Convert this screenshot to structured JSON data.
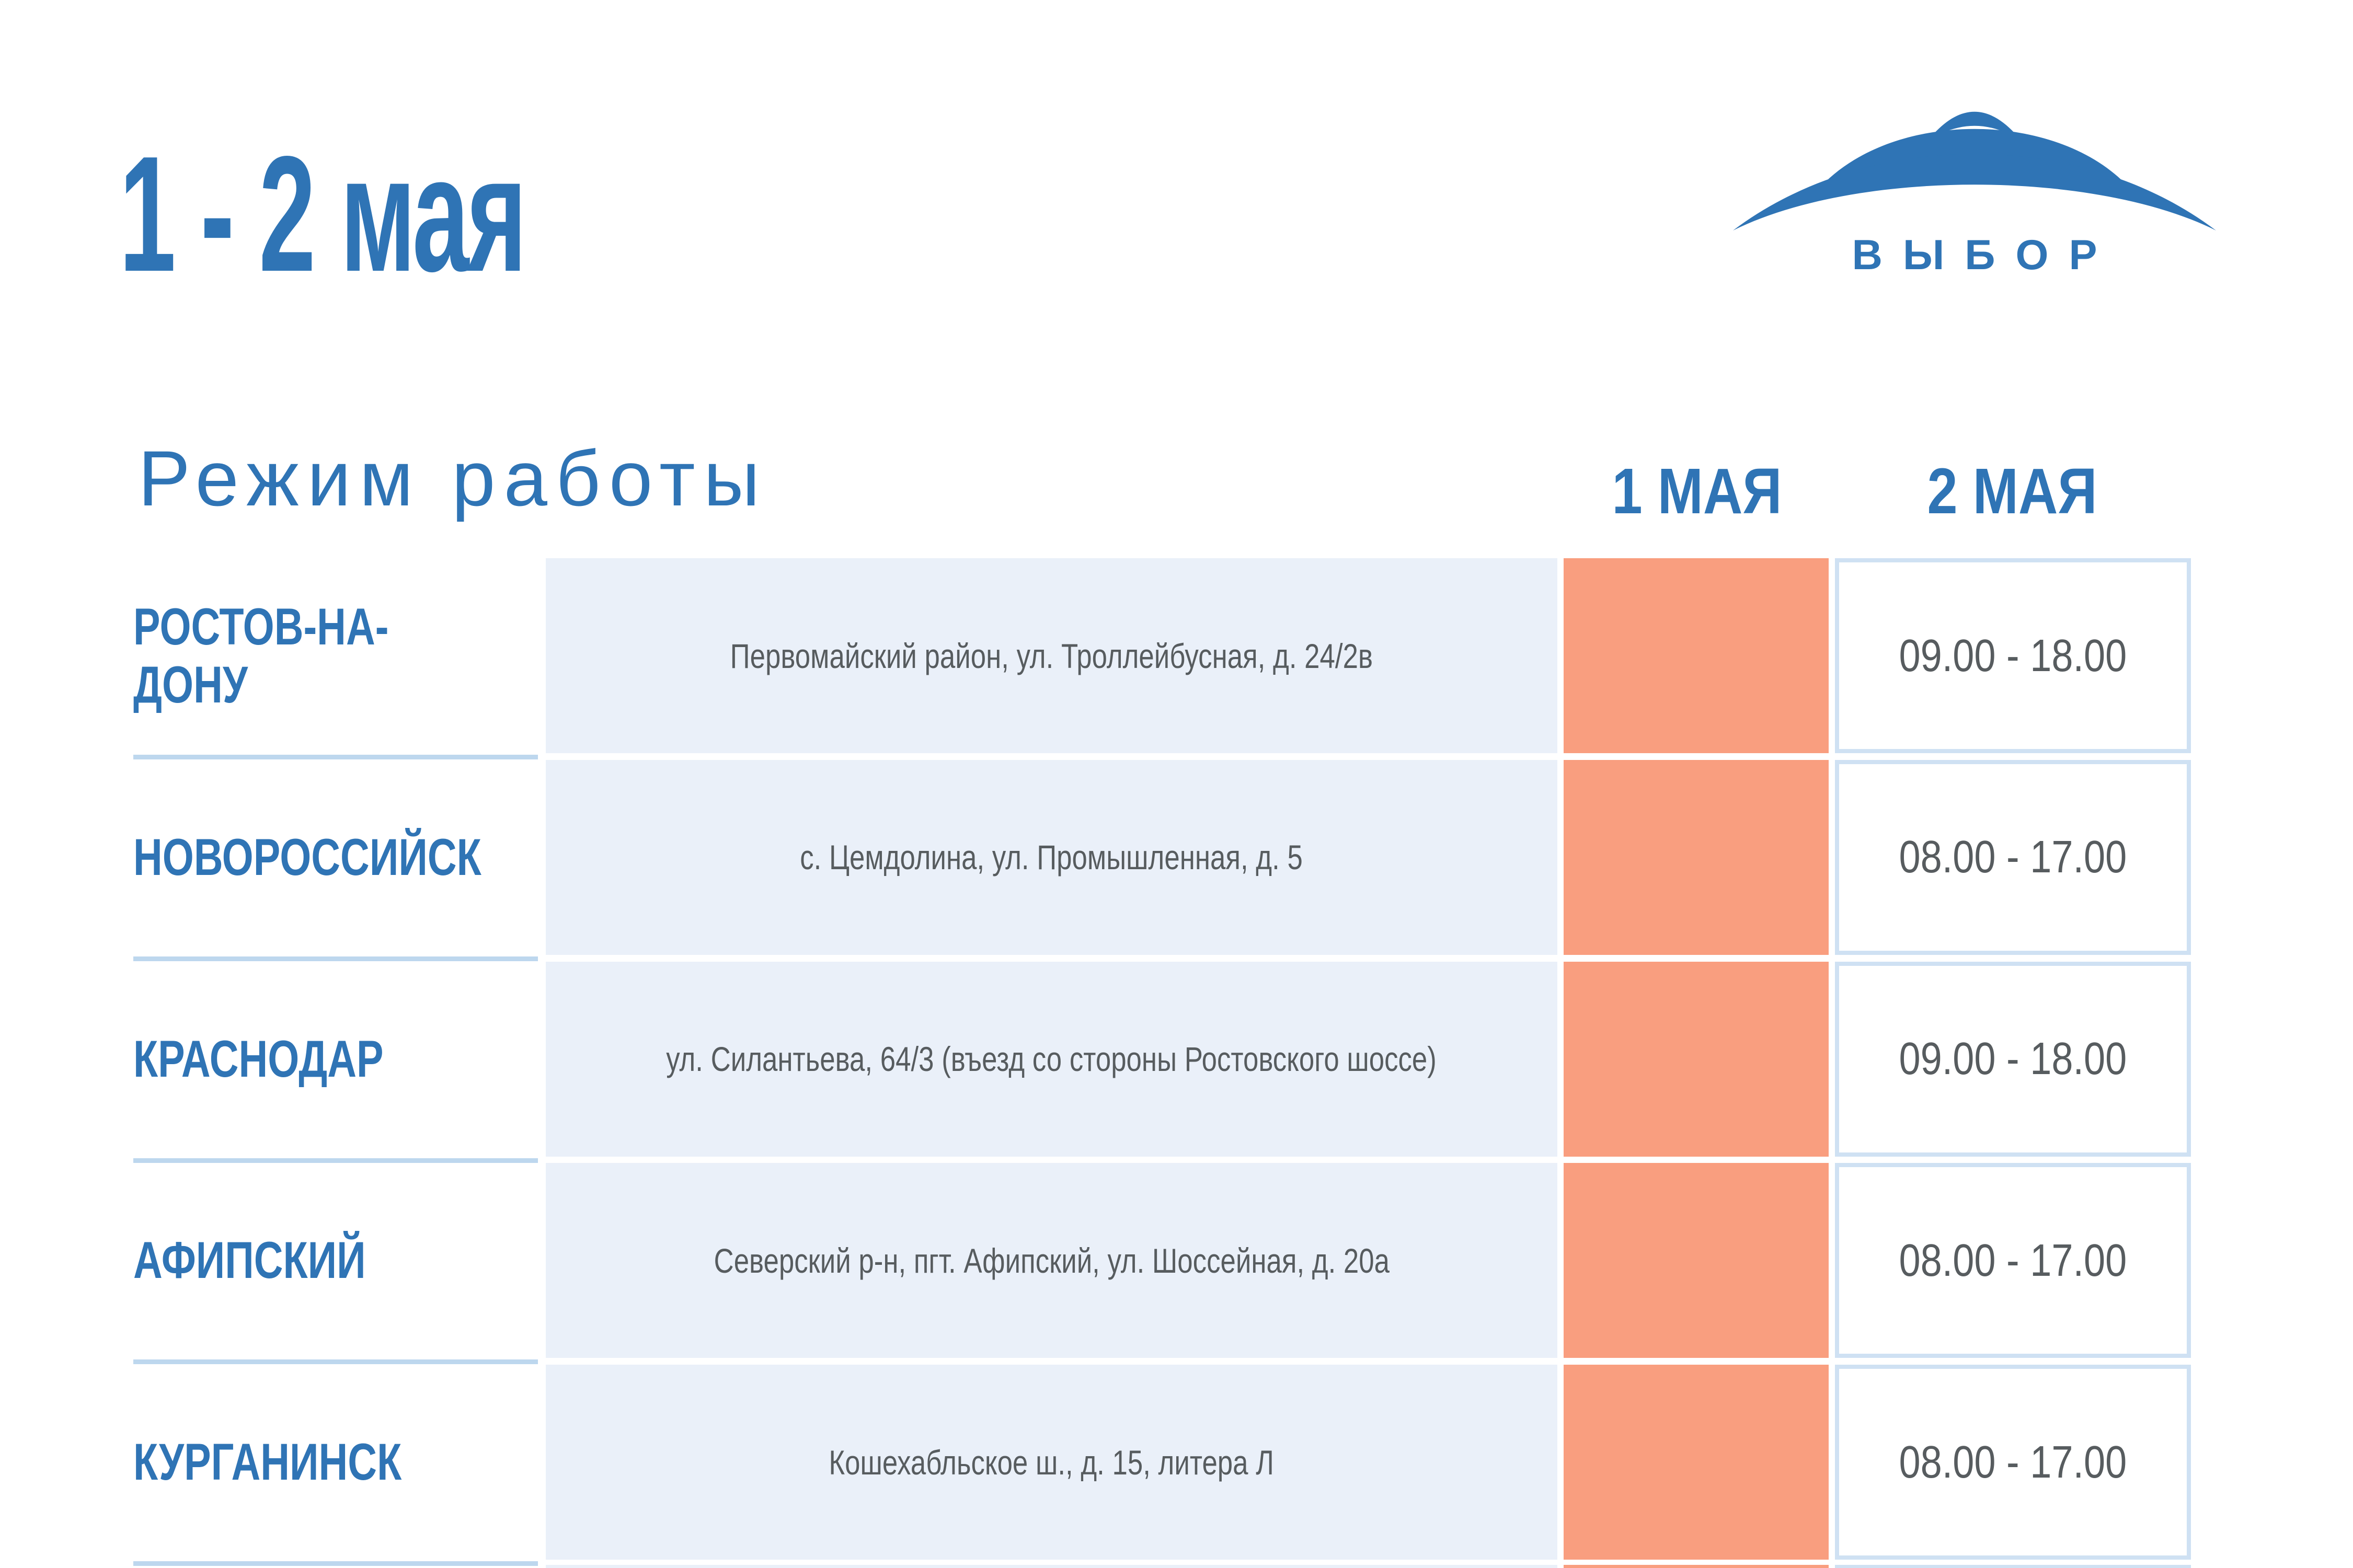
{
  "colors": {
    "accent_blue": "#2f74b5",
    "closed_salmon": "#f99e7f",
    "address_cell_bg": "#eaf0f9",
    "divider_blue": "#bdd7ee",
    "hours_cell_border": "#cfe1f3",
    "body_text_gray": "#575c5f"
  },
  "header": {
    "date_range": "1 - 2 мая",
    "section_title": "Режим работы",
    "logo_text": "ВЫБОР"
  },
  "table": {
    "columns": [
      {
        "label": "1 МАЯ"
      },
      {
        "label": "2 МАЯ"
      }
    ],
    "rows": [
      {
        "city": "РОСТОВ-НА-ДОНУ",
        "address": "Первомайский район, ул. Троллейбусная, д. 24/2в",
        "may1_hours": null,
        "may2_hours": "09.00 - 18.00"
      },
      {
        "city": "НОВОРОССИЙСК",
        "address": "с. Цемдолина, ул. Промышленная, д. 5",
        "may1_hours": null,
        "may2_hours": "08.00 - 17.00"
      },
      {
        "city": "КРАСНОДАР",
        "address": "ул. Силантьева, 64/3 (въезд со стороны Ростовского шоссе)",
        "may1_hours": null,
        "may2_hours": "09.00 - 18.00"
      },
      {
        "city": "АФИПСКИЙ",
        "address": "Северский р-н, пгт. Афипский, ул. Шоссейная, д. 20а",
        "may1_hours": null,
        "may2_hours": "08.00 - 17.00"
      },
      {
        "city": "КУРГАНИНСК",
        "address": "Кошехабльское ш., д. 15, литера Л",
        "may1_hours": null,
        "may2_hours": "08.00 - 17.00"
      }
    ]
  }
}
